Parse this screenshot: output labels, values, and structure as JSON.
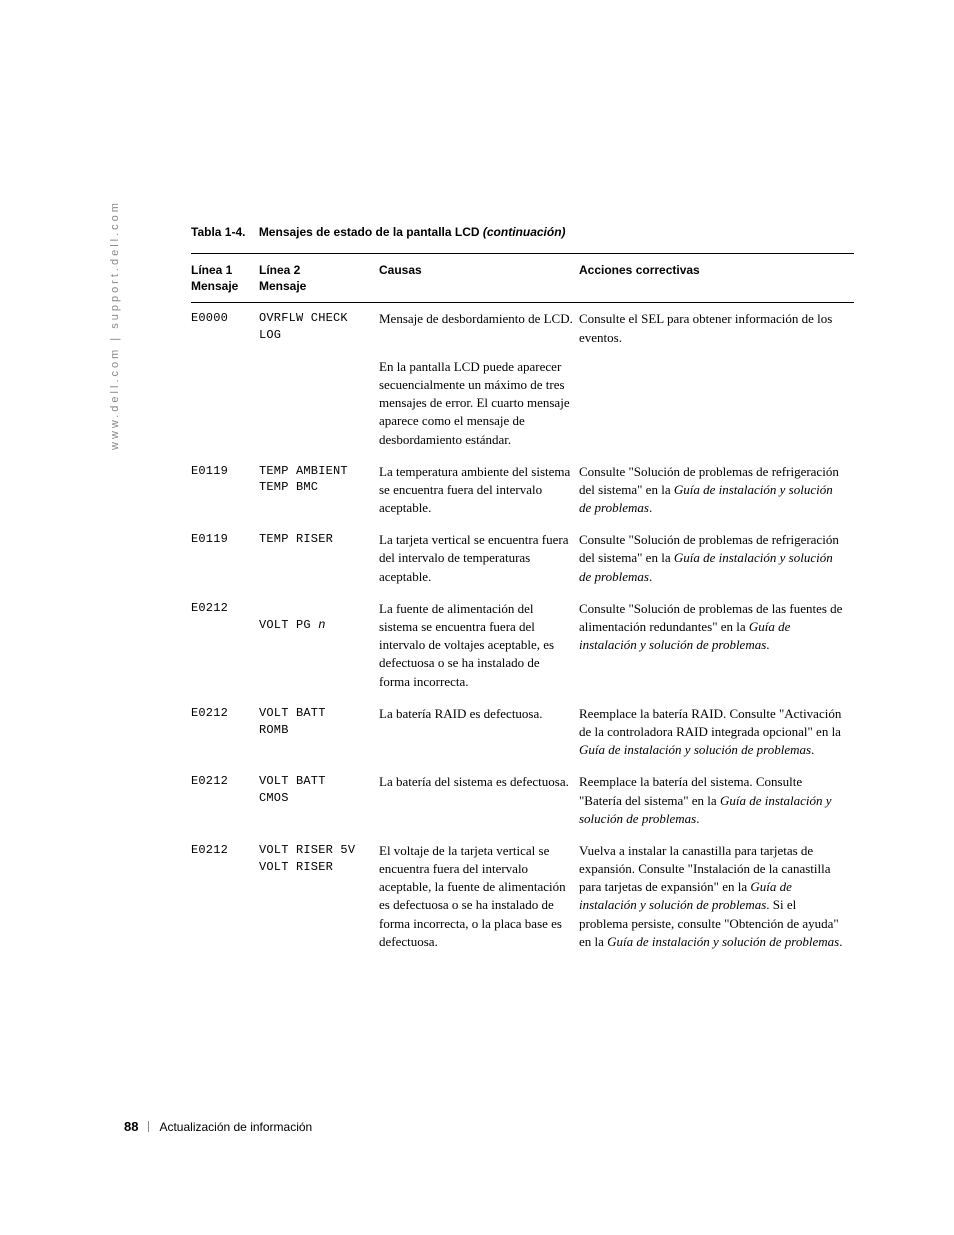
{
  "sidebar_url": "www.dell.com | support.dell.com",
  "table_caption": {
    "prefix": "Tabla 1-4.",
    "title": "Mensajes de estado de la pantalla LCD",
    "cont": "(continuación)"
  },
  "headers": {
    "c1a": "Línea 1",
    "c1b": "Mensaje",
    "c2a": "Línea 2",
    "c2b": "Mensaje",
    "c3": "Causas",
    "c4": "Acciones correctivas"
  },
  "rows": [
    {
      "l1": "E0000",
      "l2": "OVRFLW CHECK\nLOG",
      "cause_a": "Mensaje de desbordamiento de LCD.",
      "cause_b": "En la pantalla LCD puede aparecer secuencialmente un máximo de tres mensajes de error. El cuarto mensaje aparece como el mensaje de desbordamiento estándar.",
      "act": "Consulte el SEL para obtener información de los eventos."
    },
    {
      "l1": "E0119",
      "l2": "TEMP AMBIENT\nTEMP BMC",
      "cause": "La temperatura ambiente del sistema se encuentra fuera del intervalo aceptable.",
      "act_pre": "Consulte \"Solución de problemas de refrigeración del sistema\" en la ",
      "act_i1": "Guía de instalación y solución de problemas",
      "act_post": "."
    },
    {
      "l1": "E0119",
      "l2": "TEMP RISER",
      "cause": "La tarjeta vertical se encuentra fuera del intervalo de temperaturas aceptable.",
      "act_pre": "Consulte \"Solución de problemas de refrigeración del sistema\" en la ",
      "act_i1": "Guía de instalación y solución de problemas",
      "act_post": "."
    },
    {
      "l1": "E0212",
      "l2_pre": "VOLT PG ",
      "l2_i": "n",
      "cause": "La fuente de alimentación del sistema se encuentra fuera del intervalo de voltajes aceptable, es defectuosa o se ha instalado de forma incorrecta.",
      "act_pre": "Consulte \"Solución de problemas de las fuentes de alimentación redundantes\" en la ",
      "act_i1": "Guía de instalación y solución de problemas",
      "act_post": "."
    },
    {
      "l1": "E0212",
      "l2": "VOLT BATT\nROMB",
      "cause": "La batería RAID es defectuosa.",
      "act_pre": "Reemplace la batería RAID. Consulte \"Activación de la controladora RAID integrada opcional\" en la ",
      "act_i1": "Guía de instalación y solución de problemas",
      "act_post": "."
    },
    {
      "l1": "E0212",
      "l2": "VOLT BATT\nCMOS",
      "cause": "La batería del sistema es defectuosa.",
      "act_pre": "Reemplace la batería del sistema. Consulte \"Batería del sistema\" en la ",
      "act_i1": "Guía de instalación y solución de problemas",
      "act_post": "."
    },
    {
      "l1": "E0212",
      "l2": "VOLT RISER 5V\nVOLT RISER",
      "cause": "El voltaje de la tarjeta vertical se encuentra fuera del intervalo aceptable, la fuente de alimentación es defectuosa o se ha instalado de forma incorrecta, o la placa base es defectuosa.",
      "act_pre": "Vuelva a instalar la canastilla para tarjetas de expansión. Consulte \"Instalación de la canastilla para tarjetas de expansión\" en la ",
      "act_i1": "Guía de instalación y solución de problemas",
      "act_mid": ". Si el problema persiste, consulte \"Obtención de ayuda\" en la ",
      "act_i2": "Guía de instalación y solución de problemas",
      "act_post": "."
    }
  ],
  "footer": {
    "page": "88",
    "section": "Actualización de información"
  }
}
